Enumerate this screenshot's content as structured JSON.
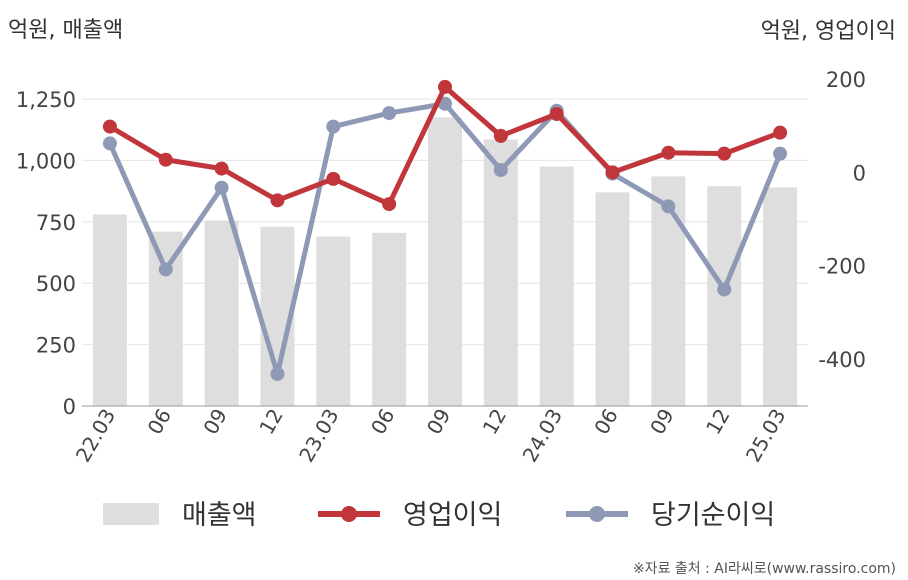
{
  "chart_data": {
    "type": "bar",
    "left_axis_unit": "억원, 매출액",
    "right_axis_unit": "억원, 영업이익",
    "categories": [
      "22.03",
      "06",
      "09",
      "12",
      "23.03",
      "06",
      "09",
      "12",
      "24.03",
      "06",
      "09",
      "12",
      "25.03"
    ],
    "left_ylim": [
      0,
      1350
    ],
    "left_yticks": [
      "0",
      "250",
      "500",
      "750",
      "1,000",
      "1,250"
    ],
    "left_ytick_values": [
      0,
      250,
      500,
      750,
      1000,
      1250
    ],
    "right_ylim": [
      -500,
      200
    ],
    "right_yticks": [
      "-400",
      "-200",
      "0",
      "200"
    ],
    "right_ytick_values": [
      -400,
      -200,
      0,
      200
    ],
    "grid": true,
    "legend_position": "bottom",
    "series": [
      {
        "name": "매출액",
        "type": "bar",
        "axis": "left",
        "color": "#dedede",
        "values": [
          780,
          710,
          755,
          730,
          690,
          705,
          1175,
          1085,
          975,
          870,
          935,
          895,
          890
        ]
      },
      {
        "name": "영업이익",
        "type": "line",
        "axis": "right",
        "color": "#c0363a",
        "values": [
          98,
          27,
          8,
          -60,
          -14,
          -68,
          183,
          78,
          125,
          0,
          42,
          40,
          85
        ]
      },
      {
        "name": "당기순이익",
        "type": "line",
        "axis": "right",
        "color": "#8e9ab5",
        "values": [
          62,
          -208,
          -33,
          -432,
          98,
          127,
          147,
          5,
          132,
          -3,
          -73,
          -251,
          40
        ]
      }
    ],
    "source": "※자료 출처 : AI라씨로(www.rassiro.com)"
  }
}
